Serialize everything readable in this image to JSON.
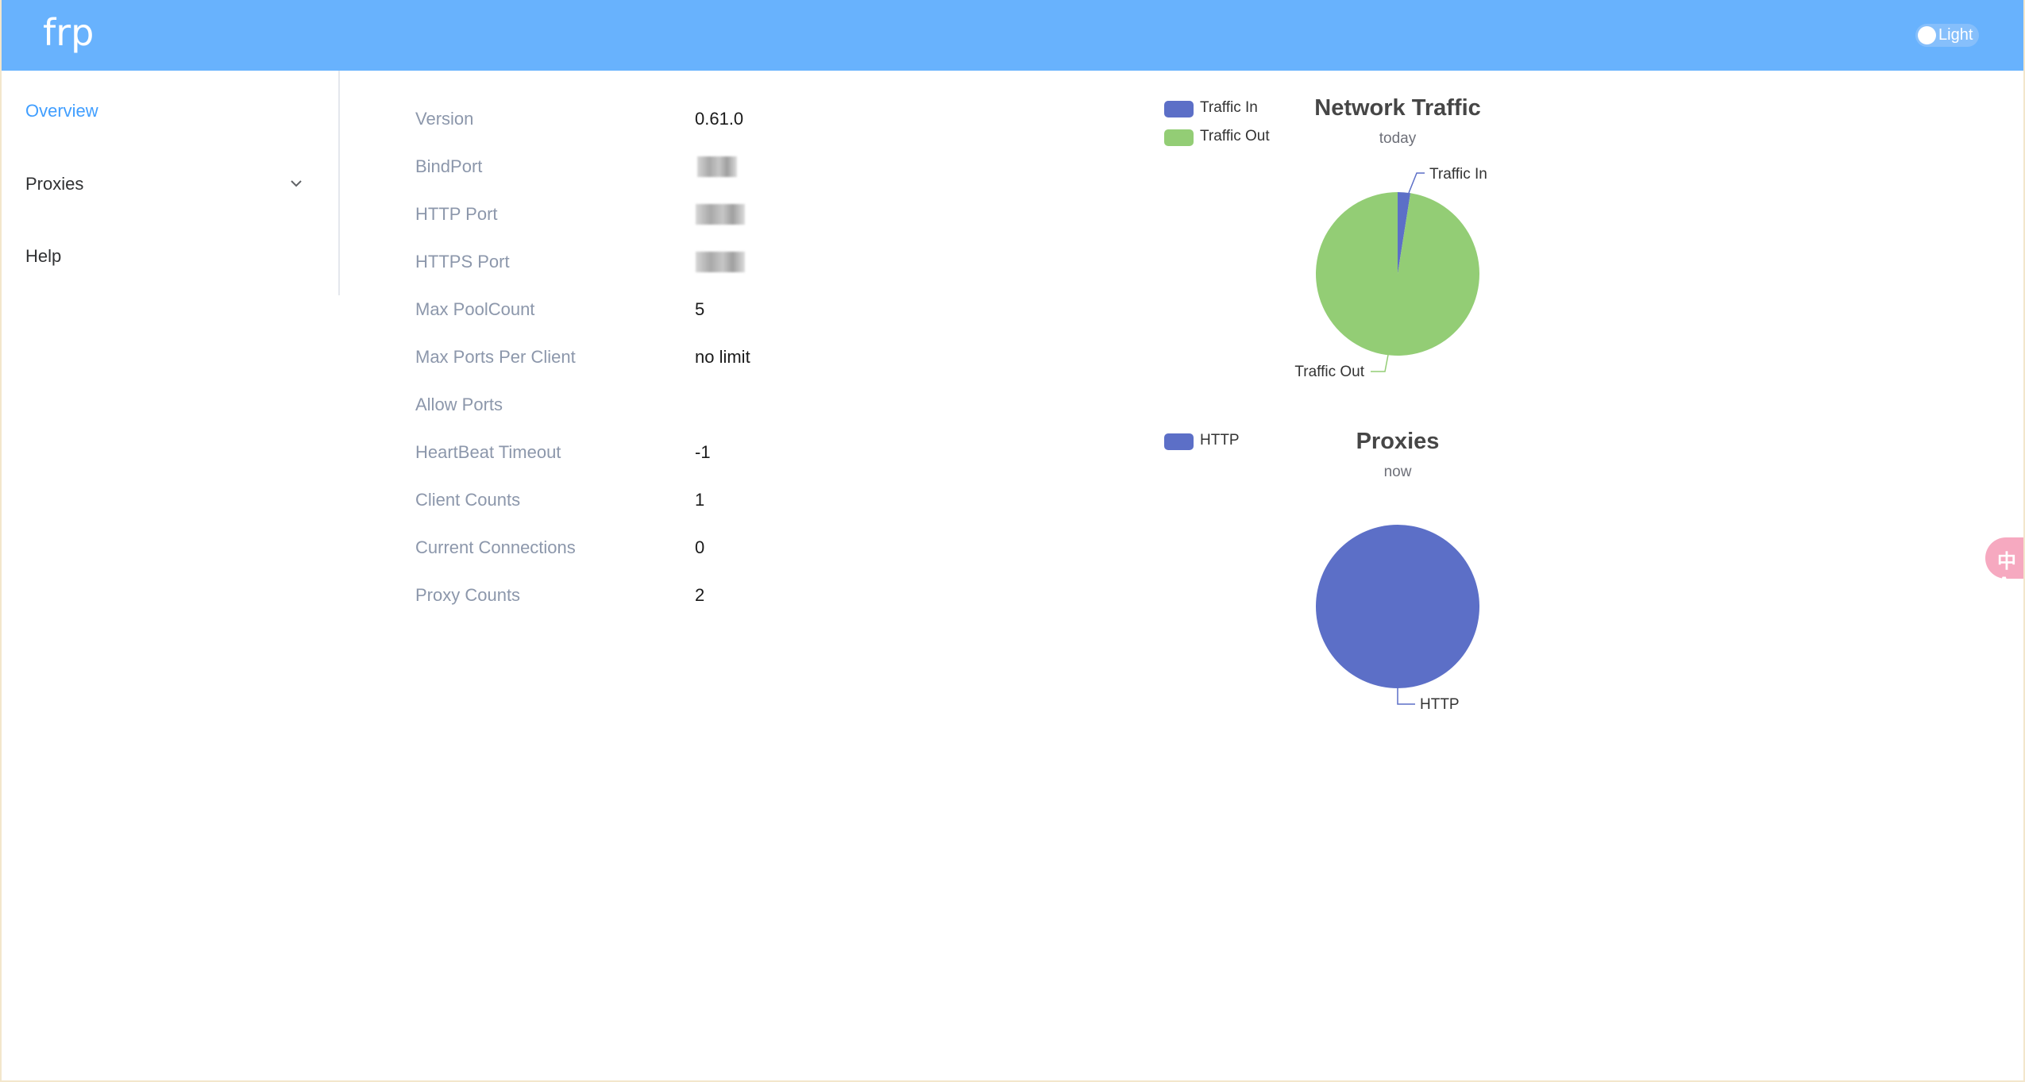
{
  "header": {
    "logo": "frp",
    "theme_toggle_label": "Light"
  },
  "sidebar": {
    "items": [
      {
        "label": "Overview",
        "active": true
      },
      {
        "label": "Proxies",
        "has_submenu": true
      },
      {
        "label": "Help"
      }
    ]
  },
  "server_info": {
    "rows": [
      {
        "label": "Version",
        "value": "0.61.0"
      },
      {
        "label": "BindPort",
        "value": "",
        "redacted": true
      },
      {
        "label": "HTTP Port",
        "value": "",
        "redacted": true
      },
      {
        "label": "HTTPS Port",
        "value": "",
        "redacted": true
      },
      {
        "label": "Max PoolCount",
        "value": "5"
      },
      {
        "label": "Max Ports Per Client",
        "value": "no limit"
      },
      {
        "label": "Allow Ports",
        "value": ""
      },
      {
        "label": "HeartBeat Timeout",
        "value": "-1"
      },
      {
        "label": "Client Counts",
        "value": "1"
      },
      {
        "label": "Current Connections",
        "value": "0"
      },
      {
        "label": "Proxy Counts",
        "value": "2"
      }
    ]
  },
  "colors": {
    "header_bg": "#68b2fd",
    "active_link": "#409eff",
    "label_gray": "#8c97ab",
    "series_blue": "#5470c6",
    "series_green": "#91cc75",
    "translate_pink": "#f6a9c0"
  },
  "chart_data": [
    {
      "type": "pie",
      "title": "Network Traffic",
      "subtitle": "today",
      "legend_position": "top-left",
      "series": [
        {
          "name": "Traffic In",
          "value": 2.5,
          "color": "#5c6fc7"
        },
        {
          "name": "Traffic Out",
          "value": 97.5,
          "color": "#93cd75"
        }
      ]
    },
    {
      "type": "pie",
      "title": "Proxies",
      "subtitle": "now",
      "legend_position": "top-left",
      "series": [
        {
          "name": "HTTP",
          "value": 100,
          "color": "#5c6fc7"
        }
      ]
    }
  ],
  "translate_button": {
    "icon": "translate-icon",
    "glyph": "中A"
  }
}
